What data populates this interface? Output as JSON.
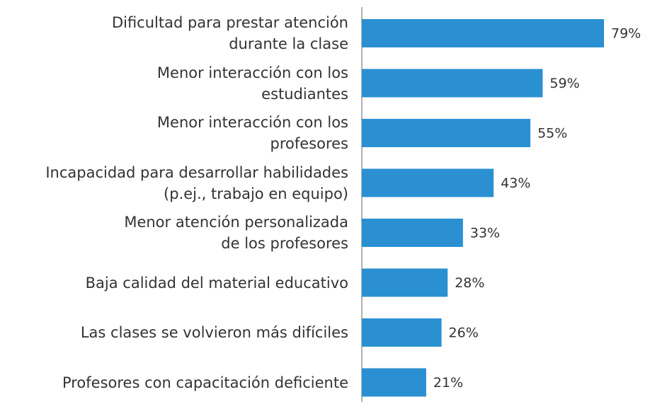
{
  "chart_data": {
    "type": "bar",
    "orientation": "horizontal",
    "categories": [
      "Dificultad para prestar atención\ndurante la clase",
      "Menor interacción con los\nestudiantes",
      "Menor interacción con los\nprofesores",
      "Incapacidad para desarrollar habilidades\n(p.ej., trabajo en equipo)",
      "Menor atención personalizada\nde los profesores",
      "Baja calidad del material educativo",
      "Las clases se volvieron más difíciles",
      "Profesores con capacitación deficiente"
    ],
    "values": [
      79,
      59,
      55,
      43,
      33,
      28,
      26,
      21
    ],
    "value_labels": [
      "79%",
      "59%",
      "55%",
      "43%",
      "33%",
      "28%",
      "26%",
      "21%"
    ],
    "color": "#2a90d2"
  }
}
